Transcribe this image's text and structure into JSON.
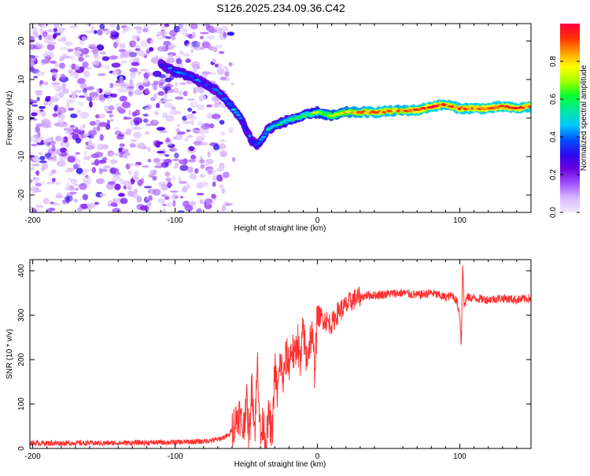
{
  "page_title": "S126.2025.234.09.36.C42",
  "chart_data": [
    {
      "type": "heatmap",
      "title": "S126.2025.234.09.36.C42",
      "xlabel": "Height of straight line (km)",
      "ylabel": "Frequency (Hz)",
      "xlim": [
        -202,
        150
      ],
      "ylim": [
        -24.5,
        24.5
      ],
      "x_ticks": [
        -200,
        -100,
        0,
        100
      ],
      "x_tick_labels": [
        "-200",
        "-100",
        "0",
        "100"
      ],
      "y_ticks": [
        -20,
        -10,
        0,
        10,
        20
      ],
      "y_tick_labels": [
        "-20",
        "-10",
        "0",
        "10",
        "20"
      ],
      "noise_region": {
        "x_start": -202,
        "x_end": -63
      },
      "ridge": {
        "x": [
          -110,
          -100,
          -90,
          -80,
          -70,
          -63,
          -58,
          -54,
          -50,
          -46,
          -42,
          -38,
          -35,
          -30,
          -20,
          -10,
          0,
          10,
          20,
          40,
          60,
          70,
          80,
          90,
          100,
          110,
          120,
          130,
          140,
          150
        ],
        "y": [
          14,
          12,
          11,
          9,
          7,
          4,
          2,
          0,
          -3,
          -6,
          -7,
          -5,
          -3,
          -2,
          -0.5,
          0.5,
          1.5,
          0.5,
          1.5,
          1.5,
          2,
          2,
          3,
          3.5,
          2.5,
          2.5,
          2.5,
          3,
          2.5,
          3
        ],
        "amplitude": [
          0.25,
          0.35,
          0.35,
          0.3,
          0.3,
          0.35,
          0.4,
          0.35,
          0.3,
          0.3,
          0.35,
          0.4,
          0.45,
          0.45,
          0.5,
          0.55,
          0.6,
          0.7,
          0.75,
          0.85,
          0.8,
          0.9,
          0.9,
          0.85,
          0.85,
          0.85,
          0.9,
          0.85,
          0.9,
          0.85
        ]
      },
      "colorbar": {
        "label": "Normalized spectral amplitude",
        "range": [
          0,
          1
        ],
        "ticks": [
          0,
          0.2,
          0.4,
          0.6,
          0.8
        ],
        "tick_labels": [
          "0.0",
          "0.2",
          "0.4",
          "0.6",
          "0.8"
        ],
        "colors": [
          "#f2e8ff",
          "#d9b8ff",
          "#a050ff",
          "#6a00e0",
          "#2a0af0",
          "#0050ff",
          "#00c8ff",
          "#00e8a0",
          "#00ff30",
          "#a0ff00",
          "#ffff00",
          "#ffa000",
          "#ff3000",
          "#ff0040"
        ]
      }
    },
    {
      "type": "line",
      "xlabel": "Height of straight line (km)",
      "ylabel": "SNR (10 * v/v)",
      "xlim": [
        -202,
        150
      ],
      "ylim": [
        0,
        425
      ],
      "x_ticks": [
        -200,
        -100,
        0,
        100
      ],
      "x_tick_labels": [
        "-200",
        "-100",
        "0",
        "100"
      ],
      "y_ticks": [
        0,
        100,
        200,
        300,
        400
      ],
      "y_tick_labels": [
        "0",
        "100",
        "200",
        "300",
        "400"
      ],
      "line_color": "#ff3030",
      "series": [
        {
          "name": "SNR",
          "x": [
            -202,
            -150,
            -100,
            -80,
            -70,
            -62,
            -58,
            -55,
            -52,
            -50,
            -48,
            -46,
            -44,
            -42,
            -40,
            -38,
            -36,
            -34,
            -32,
            -30,
            -28,
            -26,
            -24,
            -22,
            -20,
            -18,
            -16,
            -14,
            -12,
            -10,
            -8,
            -6,
            -4,
            -2,
            0,
            5,
            10,
            15,
            20,
            25,
            30,
            35,
            40,
            50,
            60,
            70,
            80,
            90,
            95,
            98,
            100,
            101,
            102,
            103,
            105,
            110,
            120,
            130,
            140,
            150
          ],
          "y": [
            12,
            12,
            14,
            16,
            20,
            30,
            60,
            80,
            40,
            120,
            20,
            150,
            40,
            200,
            20,
            60,
            10,
            80,
            20,
            180,
            120,
            200,
            150,
            210,
            190,
            230,
            200,
            250,
            180,
            270,
            200,
            230,
            260,
            180,
            300,
            290,
            280,
            310,
            320,
            335,
            340,
            345,
            345,
            348,
            350,
            345,
            350,
            340,
            345,
            330,
            300,
            230,
            420,
            320,
            340,
            338,
            335,
            338,
            335,
            338
          ]
        }
      ]
    }
  ]
}
